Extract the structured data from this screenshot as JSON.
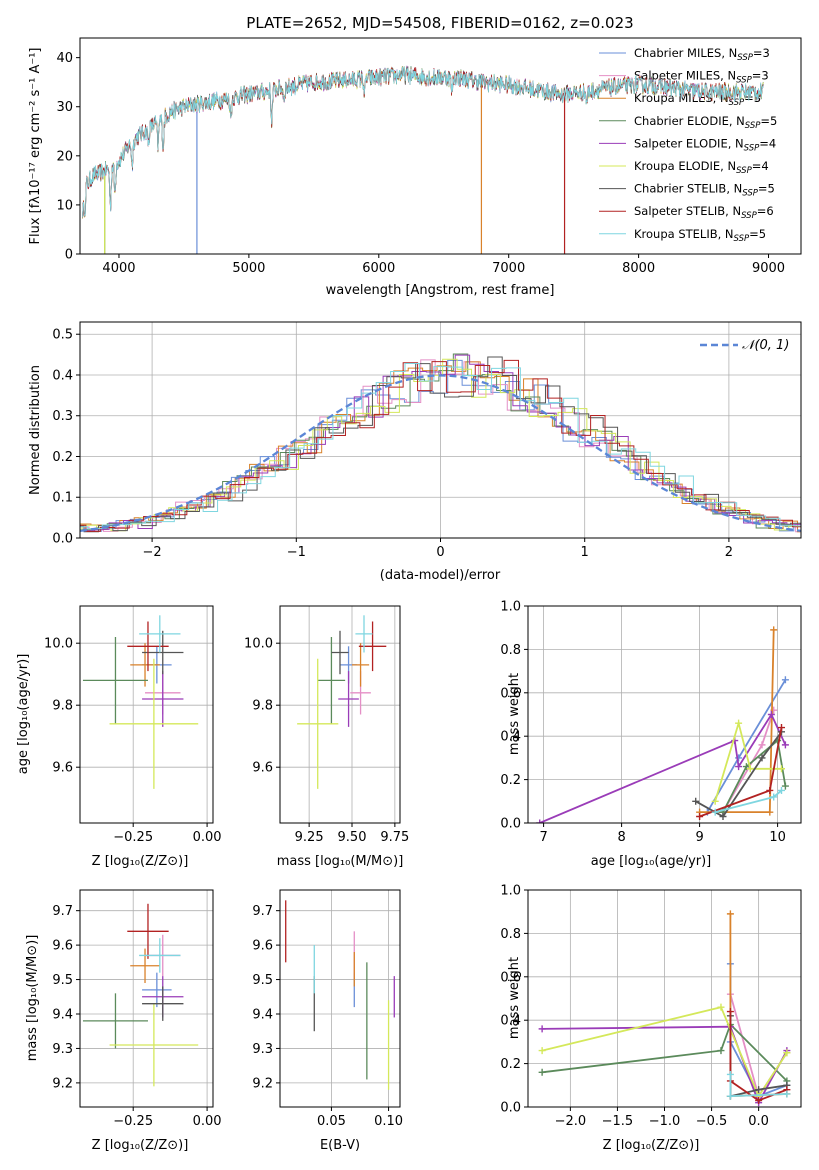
{
  "palette": [
    "#6a8fd8",
    "#e48fc6",
    "#d9822b",
    "#5b8a5b",
    "#9a3cb8",
    "#d4e85a",
    "#555555",
    "#b22222",
    "#7fd6e0"
  ],
  "chart_data": [
    {
      "id": "spectrum",
      "type": "line",
      "title": "PLATE=2652, MJD=54508, FIBERID=0162, z=0.023",
      "xlabel": "wavelength [Angstrom, rest frame]",
      "ylabel": "Flux [fλ10⁻¹⁷ erg cm⁻² s⁻¹ A⁻¹]",
      "xlim": [
        3700,
        9250
      ],
      "ylim": [
        0,
        44
      ],
      "xticks": [
        4000,
        5000,
        6000,
        7000,
        8000,
        9000
      ],
      "yticks": [
        0,
        10,
        20,
        30,
        40
      ],
      "legend_placement": "top-right",
      "series": [
        {
          "name": "Chabrier MILES, N$_{SSP}$=3"
        },
        {
          "name": "Salpeter MILES, N$_{SSP}$=3"
        },
        {
          "name": "Kroupa MILES, N$_{SSP}$=3"
        },
        {
          "name": "Chabrier ELODIE, N$_{SSP}$=5"
        },
        {
          "name": "Salpeter ELODIE, N$_{SSP}$=4"
        },
        {
          "name": "Kroupa ELODIE, N$_{SSP}$=4"
        },
        {
          "name": "Chabrier STELIB, N$_{SSP}$=5"
        },
        {
          "name": "Salpeter STELIB, N$_{SSP}$=6"
        },
        {
          "name": "Kroupa STELIB, N$_{SSP}$=5"
        }
      ],
      "continuum": [
        [
          3700,
          12
        ],
        [
          3800,
          16
        ],
        [
          3900,
          17
        ],
        [
          4000,
          19
        ],
        [
          4100,
          23
        ],
        [
          4200,
          25
        ],
        [
          4300,
          27
        ],
        [
          4400,
          29
        ],
        [
          4500,
          30
        ],
        [
          4700,
          31
        ],
        [
          4900,
          32
        ],
        [
          5100,
          33
        ],
        [
          5300,
          34
        ],
        [
          5500,
          35
        ],
        [
          5800,
          35.5
        ],
        [
          6000,
          36
        ],
        [
          6200,
          36.5
        ],
        [
          6400,
          36
        ],
        [
          6600,
          36
        ],
        [
          6800,
          35
        ],
        [
          7000,
          34.5
        ],
        [
          7200,
          33.5
        ],
        [
          7400,
          32.5
        ],
        [
          7600,
          33
        ],
        [
          7800,
          34
        ],
        [
          8000,
          34.5
        ],
        [
          8200,
          34
        ],
        [
          8500,
          33
        ],
        [
          8800,
          33
        ],
        [
          9000,
          33
        ]
      ]
    },
    {
      "id": "residuals",
      "type": "step-histogram",
      "xlabel": "(data-model)/error",
      "ylabel": "Normed distribution",
      "xlim": [
        -2.5,
        2.5
      ],
      "ylim": [
        0,
        0.53
      ],
      "xticks": [
        -2,
        -1,
        0,
        1,
        2
      ],
      "yticks": [
        0.0,
        0.1,
        0.2,
        0.3,
        0.4,
        0.5
      ],
      "bin_width": 0.1,
      "legend": "𝒩(0, 1)",
      "legend_placement": "top-right",
      "normal_curve": {
        "mean": 0,
        "sd": 1
      }
    },
    {
      "id": "age-vs-Z",
      "type": "errorbar",
      "xlabel": "Z [log₁₀(Z/Z⊙)]",
      "ylabel": "age  [log₁₀(age/yr)]",
      "xlim": [
        -0.43,
        0.02
      ],
      "ylim": [
        9.42,
        10.12
      ],
      "xticks": [
        -0.25,
        0.0
      ],
      "xticklabels": [
        "−0.25",
        "0.00"
      ],
      "yticks": [
        9.6,
        9.8,
        10.0
      ],
      "yticklabels": [
        "9.6",
        "9.8",
        "10.0"
      ],
      "points": [
        {
          "x": -0.17,
          "xerr": 0.05,
          "y": 9.93,
          "yerr": 0.06
        },
        {
          "x": -0.15,
          "xerr": 0.06,
          "y": 9.84,
          "yerr": 0.07
        },
        {
          "x": -0.21,
          "xerr": 0.05,
          "y": 9.93,
          "yerr": 0.07
        },
        {
          "x": -0.31,
          "xerr": 0.11,
          "y": 9.88,
          "yerr": 0.14
        },
        {
          "x": -0.15,
          "xerr": 0.07,
          "y": 9.82,
          "yerr": 0.09
        },
        {
          "x": -0.18,
          "xerr": 0.15,
          "y": 9.74,
          "yerr": 0.21
        },
        {
          "x": -0.15,
          "xerr": 0.07,
          "y": 9.97,
          "yerr": 0.07
        },
        {
          "x": -0.2,
          "xerr": 0.07,
          "y": 9.99,
          "yerr": 0.08
        },
        {
          "x": -0.16,
          "xerr": 0.07,
          "y": 10.03,
          "yerr": 0.06
        }
      ]
    },
    {
      "id": "age-vs-mass",
      "type": "errorbar",
      "xlabel": "mass [log₁₀(M/M⊙)]",
      "ylabel": "",
      "xlim": [
        9.08,
        9.78
      ],
      "ylim": [
        9.42,
        10.12
      ],
      "xticks": [
        9.25,
        9.5,
        9.75
      ],
      "xticklabels": [
        "9.25",
        "9.50",
        "9.75"
      ],
      "yticks": [
        9.6,
        9.8,
        10.0
      ],
      "yticklabels": [
        "9.6",
        "9.8",
        "10.0"
      ],
      "points": [
        {
          "x": 9.48,
          "xerr": 0.05,
          "y": 9.93,
          "yerr": 0.06
        },
        {
          "x": 9.55,
          "xerr": 0.06,
          "y": 9.84,
          "yerr": 0.07
        },
        {
          "x": 9.55,
          "xerr": 0.05,
          "y": 9.93,
          "yerr": 0.07
        },
        {
          "x": 9.38,
          "xerr": 0.08,
          "y": 9.88,
          "yerr": 0.14
        },
        {
          "x": 9.48,
          "xerr": 0.06,
          "y": 9.82,
          "yerr": 0.09
        },
        {
          "x": 9.3,
          "xerr": 0.12,
          "y": 9.74,
          "yerr": 0.21
        },
        {
          "x": 9.43,
          "xerr": 0.05,
          "y": 9.97,
          "yerr": 0.07
        },
        {
          "x": 9.62,
          "xerr": 0.08,
          "y": 9.99,
          "yerr": 0.08
        },
        {
          "x": 9.57,
          "xerr": 0.05,
          "y": 10.03,
          "yerr": 0.06
        }
      ]
    },
    {
      "id": "weight-vs-age",
      "type": "line",
      "xlabel": "age  [log₁₀(age/yr)]",
      "ylabel": "mass weight",
      "xlim": [
        6.8,
        10.3
      ],
      "ylim": [
        0,
        1
      ],
      "xticks": [
        7,
        8,
        9,
        10
      ],
      "xticklabels": [
        "7",
        "8",
        "9",
        "10"
      ],
      "yticks": [
        0,
        0.2,
        0.4,
        0.6,
        0.8,
        1.0
      ],
      "yticklabels": [
        "0.0",
        "0.2",
        "0.4",
        "0.6",
        "0.8",
        "1.0"
      ],
      "series": [
        {
          "points": [
            [
              9.1,
              0.05
            ],
            [
              9.5,
              0.3
            ],
            [
              10.1,
              0.66
            ]
          ]
        },
        {
          "points": [
            [
              9.3,
              0.05
            ],
            [
              9.8,
              0.36
            ],
            [
              9.95,
              0.52
            ]
          ]
        },
        {
          "points": [
            [
              9.0,
              0.05
            ],
            [
              9.9,
              0.05
            ],
            [
              9.95,
              0.89
            ]
          ]
        },
        {
          "points": [
            [
              9.3,
              0.05
            ],
            [
              9.6,
              0.26
            ],
            [
              10.0,
              0.38
            ],
            [
              10.1,
              0.17
            ]
          ]
        },
        {
          "points": [
            [
              6.95,
              0.0
            ],
            [
              9.45,
              0.38
            ],
            [
              9.5,
              0.26
            ],
            [
              9.92,
              0.5
            ],
            [
              10.1,
              0.36
            ]
          ]
        },
        {
          "points": [
            [
              9.2,
              0.1
            ],
            [
              9.5,
              0.46
            ],
            [
              9.65,
              0.25
            ],
            [
              10.05,
              0.25
            ]
          ]
        },
        {
          "points": [
            [
              8.95,
              0.1
            ],
            [
              9.3,
              0.03
            ],
            [
              9.8,
              0.3
            ],
            [
              10.05,
              0.42
            ]
          ]
        },
        {
          "points": [
            [
              9.0,
              0.03
            ],
            [
              9.9,
              0.15
            ],
            [
              10.05,
              0.44
            ]
          ]
        },
        {
          "points": [
            [
              9.2,
              0.05
            ],
            [
              9.95,
              0.12
            ],
            [
              10.05,
              0.15
            ]
          ]
        }
      ]
    },
    {
      "id": "mass-vs-Z",
      "type": "errorbar",
      "xlabel": "Z [log₁₀(Z/Z⊙)]",
      "ylabel": "mass [log₁₀(M/M⊙)]",
      "xlim": [
        -0.43,
        0.02
      ],
      "ylim": [
        9.13,
        9.76
      ],
      "xticks": [
        -0.25,
        0.0
      ],
      "xticklabels": [
        "−0.25",
        "0.00"
      ],
      "yticks": [
        9.2,
        9.3,
        9.4,
        9.5,
        9.6,
        9.7
      ],
      "yticklabels": [
        "9.2",
        "9.3",
        "9.4",
        "9.5",
        "9.6",
        "9.7"
      ],
      "points": [
        {
          "x": -0.17,
          "xerr": 0.05,
          "y": 9.47,
          "yerr": 0.05
        },
        {
          "x": -0.15,
          "xerr": 0.06,
          "y": 9.57,
          "yerr": 0.06
        },
        {
          "x": -0.21,
          "xerr": 0.05,
          "y": 9.54,
          "yerr": 0.05
        },
        {
          "x": -0.31,
          "xerr": 0.11,
          "y": 9.38,
          "yerr": 0.08
        },
        {
          "x": -0.15,
          "xerr": 0.07,
          "y": 9.45,
          "yerr": 0.06
        },
        {
          "x": -0.18,
          "xerr": 0.15,
          "y": 9.31,
          "yerr": 0.12
        },
        {
          "x": -0.15,
          "xerr": 0.07,
          "y": 9.43,
          "yerr": 0.05
        },
        {
          "x": -0.2,
          "xerr": 0.07,
          "y": 9.64,
          "yerr": 0.08
        },
        {
          "x": -0.16,
          "xerr": 0.07,
          "y": 9.57,
          "yerr": 0.05
        }
      ]
    },
    {
      "id": "mass-vs-ebv",
      "type": "errorbar",
      "xlabel": "E(B-V)",
      "ylabel": "",
      "xlim": [
        0.005,
        0.11
      ],
      "ylim": [
        9.13,
        9.76
      ],
      "xticks": [
        0.05,
        0.1
      ],
      "xticklabels": [
        "0.05",
        "0.10"
      ],
      "yticks": [
        9.2,
        9.3,
        9.4,
        9.5,
        9.6,
        9.7
      ],
      "yticklabels": [
        "9.2",
        "9.3",
        "9.4",
        "9.5",
        "9.6",
        "9.7"
      ],
      "points": [
        {
          "x": 0.07,
          "y": 9.47,
          "yerr": 0.05
        },
        {
          "x": 0.07,
          "y": 9.57,
          "yerr": 0.07
        },
        {
          "x": 0.07,
          "y": 9.53,
          "yerr": 0.05
        },
        {
          "x": 0.081,
          "y": 9.38,
          "yerr": 0.17
        },
        {
          "x": 0.105,
          "y": 9.45,
          "yerr": 0.06
        },
        {
          "x": 0.1,
          "y": 9.31,
          "yerr": 0.13
        },
        {
          "x": 0.035,
          "y": 9.43,
          "yerr": 0.08
        },
        {
          "x": 0.01,
          "y": 9.64,
          "yerr": 0.09
        },
        {
          "x": 0.035,
          "y": 9.53,
          "yerr": 0.07
        }
      ]
    },
    {
      "id": "weight-vs-Z",
      "type": "line",
      "xlabel": "Z [log₁₀(Z/Z⊙)]",
      "ylabel": "mass weight",
      "xlim": [
        -2.45,
        0.45
      ],
      "ylim": [
        0,
        1
      ],
      "xticks": [
        -2.0,
        -1.5,
        -1.0,
        -0.5,
        0.0
      ],
      "xticklabels": [
        "−2.0",
        "−1.5",
        "−1.0",
        "−0.5",
        "0.0"
      ],
      "yticks": [
        0,
        0.2,
        0.4,
        0.6,
        0.8,
        1.0
      ],
      "yticklabels": [
        "0.0",
        "0.2",
        "0.4",
        "0.6",
        "0.8",
        "1.0"
      ],
      "series": [
        {
          "points": [
            [
              -0.3,
              0.66
            ],
            [
              -0.3,
              0.3
            ],
            [
              0.0,
              0.05
            ],
            [
              0.3,
              0.1
            ]
          ]
        },
        {
          "points": [
            [
              -0.3,
              0.52
            ],
            [
              0.0,
              0.05
            ],
            [
              0.3,
              0.25
            ]
          ]
        },
        {
          "points": [
            [
              -0.3,
              0.89
            ],
            [
              -0.3,
              0.05
            ],
            [
              0.3,
              0.06
            ]
          ]
        },
        {
          "points": [
            [
              -2.3,
              0.16
            ],
            [
              -0.4,
              0.26
            ],
            [
              -0.3,
              0.38
            ],
            [
              0.3,
              0.12
            ]
          ]
        },
        {
          "points": [
            [
              -2.3,
              0.36
            ],
            [
              -0.3,
              0.37
            ],
            [
              0.0,
              0.02
            ],
            [
              0.3,
              0.26
            ]
          ]
        },
        {
          "points": [
            [
              -2.3,
              0.26
            ],
            [
              -0.4,
              0.46
            ],
            [
              0.0,
              0.05
            ],
            [
              0.3,
              0.25
            ]
          ]
        },
        {
          "points": [
            [
              -0.3,
              0.42
            ],
            [
              -0.3,
              0.05
            ],
            [
              0.0,
              0.08
            ],
            [
              0.3,
              0.1
            ]
          ]
        },
        {
          "points": [
            [
              -0.3,
              0.44
            ],
            [
              -0.3,
              0.12
            ],
            [
              0.0,
              0.03
            ],
            [
              0.3,
              0.08
            ]
          ]
        },
        {
          "points": [
            [
              -0.3,
              0.15
            ],
            [
              -0.3,
              0.05
            ],
            [
              0.3,
              0.06
            ]
          ]
        }
      ]
    }
  ]
}
